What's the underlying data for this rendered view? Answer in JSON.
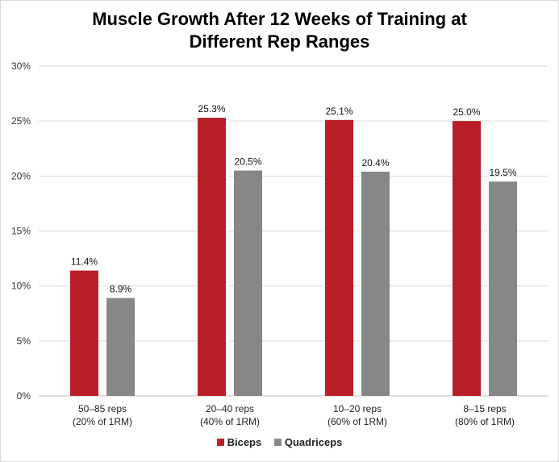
{
  "chart_data": {
    "type": "bar",
    "title_lines": [
      "Muscle Growth After 12 Weeks of Training at",
      "Different Rep Ranges"
    ],
    "categories": [
      [
        "50–85 reps",
        "(20% of 1RM)"
      ],
      [
        "20–40 reps",
        "(40% of 1RM)"
      ],
      [
        "10–20 reps",
        "(60% of 1RM)"
      ],
      [
        "8–15 reps",
        "(80% of 1RM)"
      ]
    ],
    "series": [
      {
        "name": "Biceps",
        "color": "#b81f28",
        "values": [
          11.4,
          25.3,
          25.1,
          25.0
        ],
        "labels": [
          "11.4%",
          "25.3%",
          "25.1%",
          "25.0%"
        ]
      },
      {
        "name": "Quadriceps",
        "color": "#878787",
        "values": [
          8.9,
          20.5,
          20.4,
          19.5
        ],
        "labels": [
          "8.9%",
          "20.5%",
          "20.4%",
          "19.5%"
        ]
      }
    ],
    "ylim": [
      0,
      30
    ],
    "yticks": [
      "0%",
      "5%",
      "10%",
      "15%",
      "20%",
      "25%",
      "30%"
    ],
    "grid": true,
    "legend_position": "bottom"
  }
}
